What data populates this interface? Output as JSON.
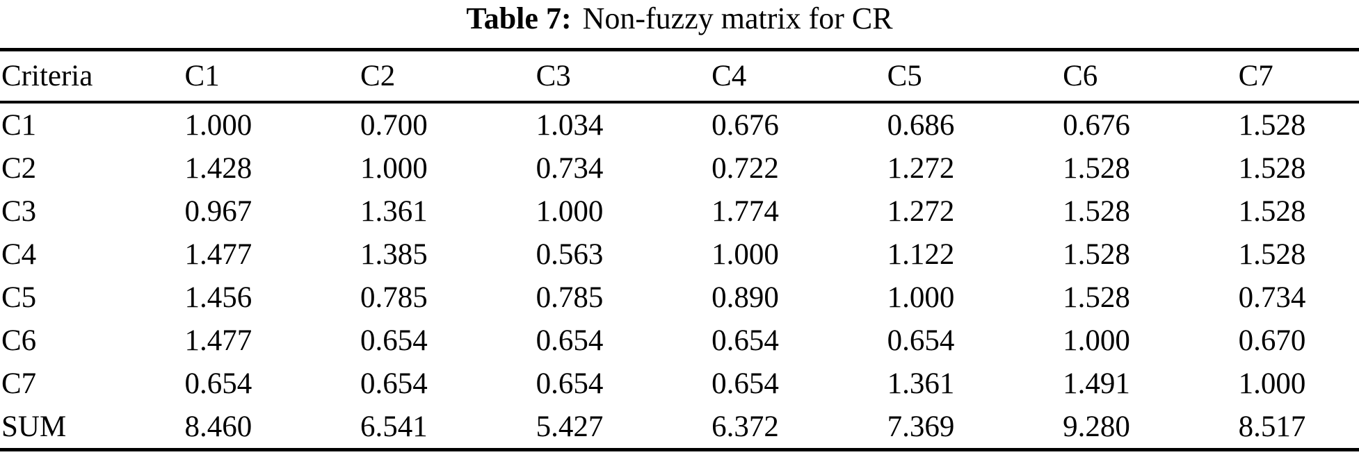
{
  "caption": {
    "label": "Table 7:",
    "text": "Non-fuzzy matrix for CR"
  },
  "colors": {
    "background": "#ffffff",
    "text": "#000000",
    "rule": "#000000"
  },
  "table": {
    "columns": [
      "Criteria",
      "C1",
      "C2",
      "C3",
      "C4",
      "C5",
      "C6",
      "C7"
    ],
    "rows": [
      {
        "label": "C1",
        "values": [
          "1.000",
          "0.700",
          "1.034",
          "0.676",
          "0.686",
          "0.676",
          "1.528"
        ]
      },
      {
        "label": "C2",
        "values": [
          "1.428",
          "1.000",
          "0.734",
          "0.722",
          "1.272",
          "1.528",
          "1.528"
        ]
      },
      {
        "label": "C3",
        "values": [
          "0.967",
          "1.361",
          "1.000",
          "1.774",
          "1.272",
          "1.528",
          "1.528"
        ]
      },
      {
        "label": "C4",
        "values": [
          "1.477",
          "1.385",
          "0.563",
          "1.000",
          "1.122",
          "1.528",
          "1.528"
        ]
      },
      {
        "label": "C5",
        "values": [
          "1.456",
          "0.785",
          "0.785",
          "0.890",
          "1.000",
          "1.528",
          "0.734"
        ]
      },
      {
        "label": "C6",
        "values": [
          "1.477",
          "0.654",
          "0.654",
          "0.654",
          "0.654",
          "1.000",
          "0.670"
        ]
      },
      {
        "label": "C7",
        "values": [
          "0.654",
          "0.654",
          "0.654",
          "0.654",
          "1.361",
          "1.491",
          "1.000"
        ]
      },
      {
        "label": "SUM",
        "values": [
          "8.460",
          "6.541",
          "5.427",
          "6.372",
          "7.369",
          "9.280",
          "8.517"
        ]
      }
    ]
  }
}
